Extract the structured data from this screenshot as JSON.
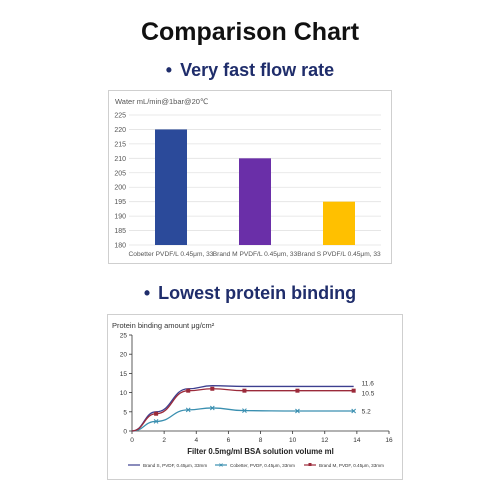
{
  "page": {
    "title": "Comparison Chart",
    "bullet": "•",
    "section1_title": "Very fast flow rate",
    "section2_title": "Lowest protein binding"
  },
  "chart_data": [
    {
      "type": "bar",
      "ylabel": "Water  mL/min@1bar@20℃",
      "categories": [
        "Cobetter PVDF/L 0.45μm, 33",
        "Brand M PVDF/L 0.45μm, 33",
        "Brand S PVDF/L 0.45μm, 33"
      ],
      "values": [
        220,
        210,
        195
      ],
      "colors": [
        "#2b4a9a",
        "#6a2fa8",
        "#ffc000"
      ],
      "ylim": [
        180,
        225
      ],
      "yticks": [
        180,
        185,
        190,
        195,
        200,
        205,
        210,
        215,
        220,
        225
      ],
      "grid": true
    },
    {
      "type": "line",
      "ylabel": "Protein binding amount μg/cm²",
      "xlabel": "Filter 0.5mg/ml BSA solution volume ml",
      "xlim": [
        0,
        16
      ],
      "ylim": [
        0,
        25
      ],
      "xticks": [
        0,
        2,
        4,
        6,
        8,
        10,
        12,
        14,
        16
      ],
      "yticks": [
        0,
        5,
        10,
        15,
        20,
        25
      ],
      "grid": false,
      "legend_position": "bottom",
      "series": [
        {
          "name": "Brand S, PVDF, 0.45μm, 33mm",
          "color": "#3d3f8f",
          "marker": "none",
          "x": [
            0,
            1.5,
            3.5,
            5,
            7,
            10.3,
            13.8
          ],
          "y": [
            0,
            5,
            11,
            11.8,
            11.6,
            11.6,
            11.6
          ],
          "end_label": "11.6"
        },
        {
          "name": "Cobetter, PVDF, 0.45μm, 33mm",
          "color": "#3a8fb0",
          "marker": "x",
          "x": [
            0,
            1.5,
            3.5,
            5,
            7,
            10.3,
            13.8
          ],
          "y": [
            0,
            2.5,
            5.5,
            6,
            5.3,
            5.2,
            5.2
          ],
          "end_label": "5.2"
        },
        {
          "name": "Brand M, PVDF, 0.45μm, 33mm",
          "color": "#9b2a3a",
          "marker": "square",
          "x": [
            0,
            1.5,
            3.5,
            5,
            7,
            10.3,
            13.8
          ],
          "y": [
            0,
            4.5,
            10.5,
            11,
            10.5,
            10.5,
            10.5
          ],
          "end_label": "10.5"
        }
      ]
    }
  ]
}
